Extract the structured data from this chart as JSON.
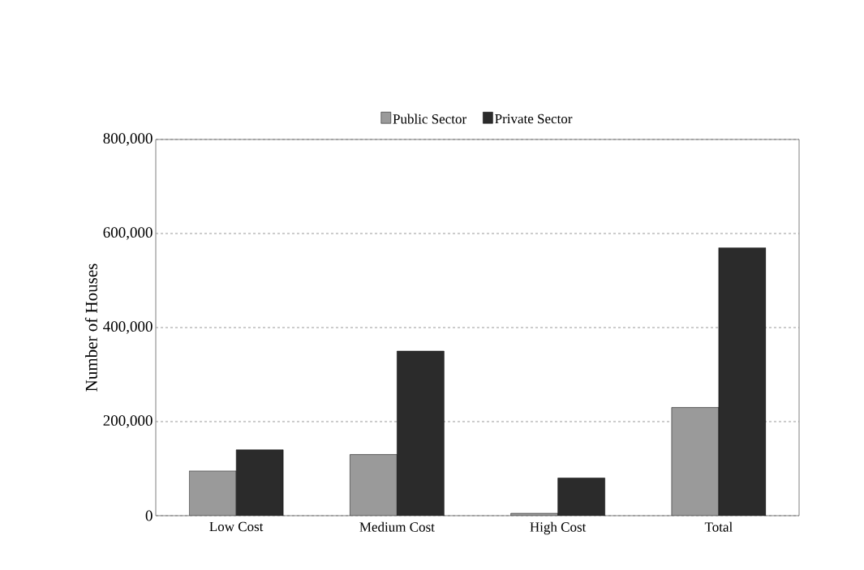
{
  "chart_data": {
    "type": "bar",
    "ylabel": "Number of Houses",
    "categories": [
      "Low Cost",
      "Medium Cost",
      "High Cost",
      "Total"
    ],
    "series": [
      {
        "name": "Public Sector",
        "color": "#9a9a9a",
        "values": [
          95000,
          130000,
          5000,
          230000
        ]
      },
      {
        "name": "Private Sector",
        "color": "#2b2b2b",
        "values": [
          140000,
          350000,
          80000,
          570000
        ]
      }
    ],
    "ylim": [
      0,
      800000
    ],
    "yticks": [
      {
        "value": 0,
        "label": "0"
      },
      {
        "value": 200000,
        "label": "200,000"
      },
      {
        "value": 400000,
        "label": "400,000"
      },
      {
        "value": 600000,
        "label": "600,000"
      },
      {
        "value": 800000,
        "label": "800,000"
      }
    ],
    "grid": "y",
    "legend": "top"
  }
}
